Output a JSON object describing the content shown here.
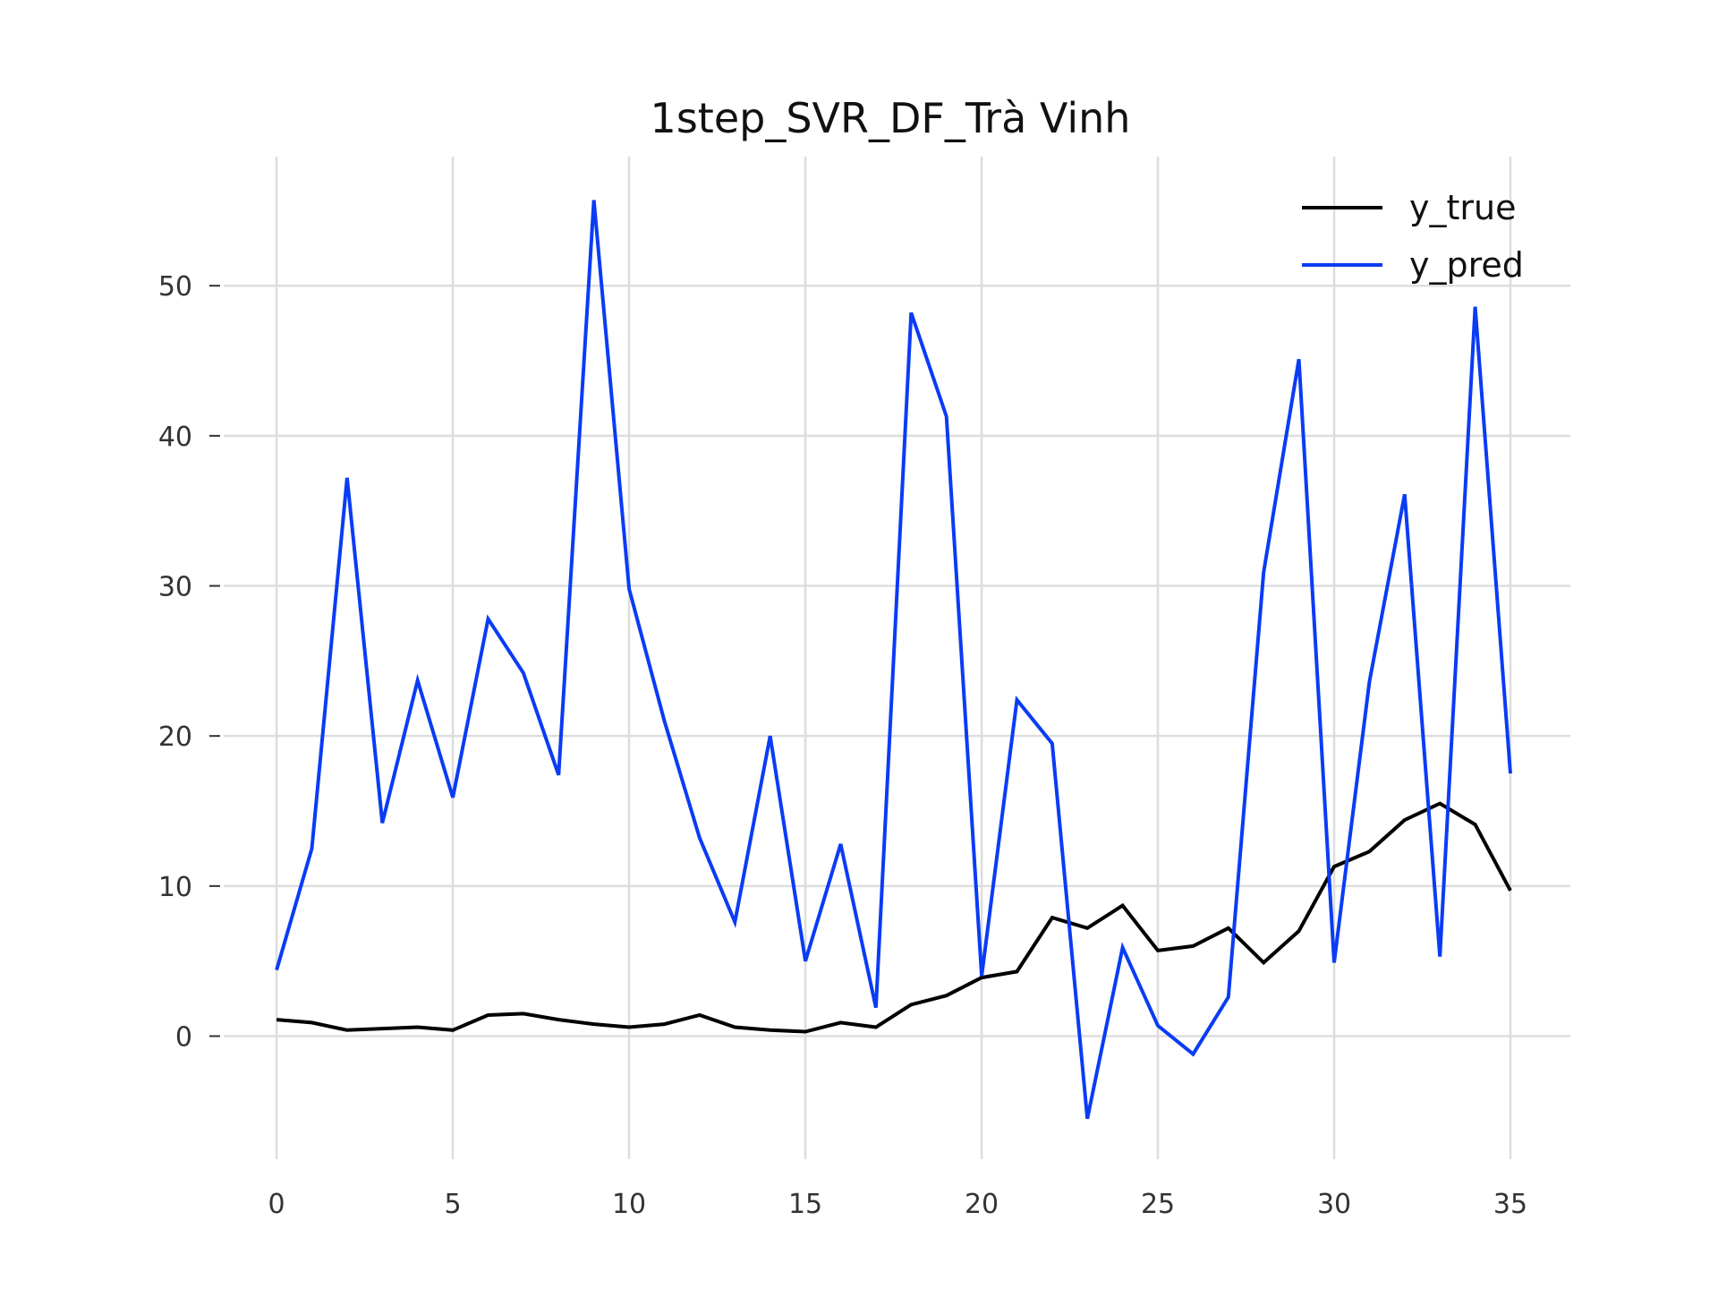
{
  "chart_data": {
    "type": "line",
    "title": "1step_SVR_DF_Trà Vinh",
    "xlabel": "",
    "ylabel": "",
    "x": [
      0,
      1,
      2,
      3,
      4,
      5,
      6,
      7,
      8,
      9,
      10,
      11,
      12,
      13,
      14,
      15,
      16,
      17,
      18,
      19,
      20,
      21,
      22,
      23,
      24,
      25,
      26,
      27,
      28,
      29,
      30,
      31,
      32,
      33,
      34,
      35
    ],
    "xlim": [
      -1.5,
      36.7
    ],
    "ylim": [
      -8.2,
      58.6
    ],
    "x_ticks": [
      0,
      5,
      10,
      15,
      20,
      25,
      30,
      35
    ],
    "y_ticks": [
      0,
      10,
      20,
      30,
      40,
      50
    ],
    "grid": true,
    "legend_position": "top-right",
    "series": [
      {
        "name": "y_true",
        "color": "#000000",
        "values": [
          1.1,
          0.9,
          0.4,
          0.5,
          0.6,
          0.4,
          1.4,
          1.5,
          1.1,
          0.8,
          0.6,
          0.8,
          1.4,
          0.6,
          0.4,
          0.3,
          0.9,
          0.6,
          2.1,
          2.7,
          3.9,
          4.3,
          7.9,
          7.2,
          8.7,
          5.7,
          6.0,
          7.2,
          4.9,
          7.0,
          11.3,
          12.3,
          14.4,
          15.5,
          14.1,
          9.7
        ]
      },
      {
        "name": "y_pred",
        "color": "#0a3cf5",
        "values": [
          4.4,
          12.5,
          37.2,
          14.2,
          23.7,
          15.9,
          27.8,
          24.2,
          17.4,
          55.7,
          29.8,
          21.0,
          13.2,
          7.6,
          20.0,
          5.0,
          12.8,
          1.9,
          48.2,
          41.3,
          4.0,
          22.4,
          19.5,
          -5.5,
          5.9,
          0.7,
          -1.2,
          2.6,
          30.9,
          45.1,
          4.9,
          23.6,
          36.1,
          5.3,
          48.6,
          17.5
        ]
      }
    ]
  }
}
